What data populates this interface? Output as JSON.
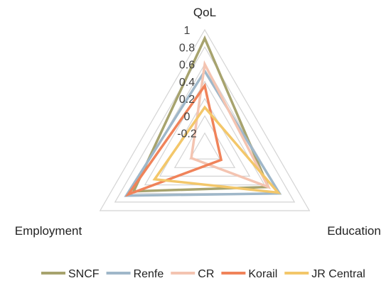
{
  "chart_data": {
    "type": "radar",
    "axes": [
      "QoL",
      "Education",
      "Employment"
    ],
    "r_range": [
      -0.4,
      1.0
    ],
    "ticks": [
      "1",
      "0.8",
      "0.6",
      "0.4",
      "0.2",
      "0",
      "-0.2"
    ],
    "tick_values": [
      1.0,
      0.8,
      0.6,
      0.4,
      0.2,
      0.0,
      -0.2
    ],
    "grid": true,
    "legend_position": "bottom",
    "series": [
      {
        "name": "SNCF",
        "color": "#a7a36e",
        "values": [
          0.9,
          0.45,
          0.55
        ]
      },
      {
        "name": "Renfe",
        "color": "#9fb7c9",
        "values": [
          0.52,
          0.6,
          0.65
        ]
      },
      {
        "name": "CR",
        "color": "#f4c4b1",
        "values": [
          0.6,
          0.45,
          -0.22
        ]
      },
      {
        "name": "Korail",
        "color": "#f0835a",
        "values": [
          0.35,
          -0.18,
          0.62
        ]
      },
      {
        "name": "JR Central",
        "color": "#f3c76a",
        "values": [
          0.1,
          0.58,
          0.27
        ]
      }
    ]
  }
}
